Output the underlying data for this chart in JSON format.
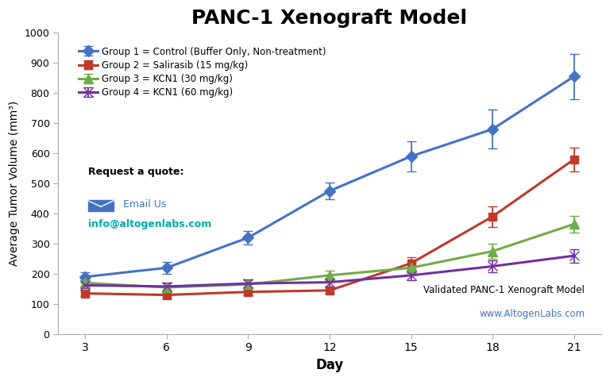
{
  "title": "PANC-1 Xenograft Model",
  "xlabel": "Day",
  "ylabel": "Average Tumor Volume (mm³)",
  "days": [
    3,
    6,
    9,
    12,
    15,
    18,
    21
  ],
  "group1": {
    "label": "Group 1 = Control (Buffer Only, Non-treatment)",
    "color": "#4472C4",
    "values": [
      190,
      220,
      320,
      475,
      590,
      680,
      855
    ],
    "errors": [
      15,
      20,
      22,
      28,
      50,
      65,
      75
    ],
    "marker": "D",
    "markersize": 7
  },
  "group2": {
    "label": "Group 2 = Salirasib (15 mg/kg)",
    "color": "#C0392B",
    "values": [
      135,
      130,
      140,
      145,
      235,
      390,
      580
    ],
    "errors": [
      10,
      12,
      12,
      12,
      20,
      35,
      40
    ],
    "marker": "s",
    "markersize": 7
  },
  "group3": {
    "label": "Group 3 = KCN1 (30 mg/kg)",
    "color": "#70AD47",
    "values": [
      170,
      155,
      165,
      195,
      220,
      275,
      365
    ],
    "errors": [
      12,
      14,
      13,
      15,
      18,
      25,
      28
    ],
    "marker": "^",
    "markersize": 8
  },
  "group4": {
    "label": "Group 4 = KCN1 (60 mg/kg)",
    "color": "#7030A0",
    "values": [
      162,
      158,
      168,
      172,
      195,
      225,
      260
    ],
    "errors": [
      10,
      14,
      13,
      13,
      15,
      20,
      22
    ],
    "marker": "x",
    "markersize": 8
  },
  "ylim": [
    0,
    1000
  ],
  "yticks": [
    0,
    100,
    200,
    300,
    400,
    500,
    600,
    700,
    800,
    900,
    1000
  ],
  "background_color": "#FFFFFF",
  "annotation_text": "Validated PANC-1 Xenograft Model",
  "annotation_url": "www.AltogenLabs.com",
  "annotation_url_color": "#4472C4",
  "request_quote": "Request a quote:",
  "email_label": "Email Us",
  "email_color": "#4472C4",
  "info_email": "info@altogenlabs.com",
  "info_email_color": "#00AAAA"
}
